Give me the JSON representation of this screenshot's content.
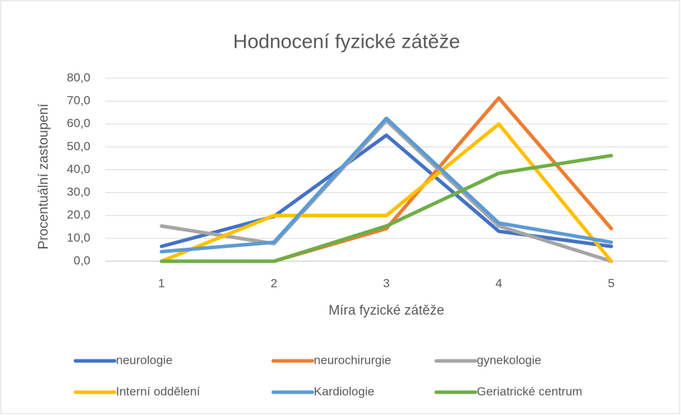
{
  "chart_data": {
    "type": "line",
    "title": "Hodnocení fyzické zátěže",
    "x_label": "Míra fyzické zátěže",
    "y_label": "Procentuální zastoupení",
    "categories": [
      "1",
      "2",
      "3",
      "4",
      "5"
    ],
    "series": [
      {
        "name": "neurologie",
        "color": "#4472c4",
        "values": [
          6.5,
          19.6,
          55.1,
          13.1,
          6.5
        ]
      },
      {
        "name": "neurochirurgie",
        "color": "#ed7d31",
        "values": [
          0,
          0,
          14.3,
          71.4,
          14.3
        ]
      },
      {
        "name": "gynekologie",
        "color": "#a5a5a5",
        "values": [
          15.4,
          7.7,
          61.5,
          15.4,
          0
        ]
      },
      {
        "name": "Interní oddělení",
        "color": "#ffc000",
        "values": [
          0,
          20,
          20,
          60,
          0
        ]
      },
      {
        "name": "Kardiologie",
        "color": "#5b9bd5",
        "values": [
          4.2,
          8.3,
          62.5,
          16.7,
          8.3
        ]
      },
      {
        "name": "Geriatrické centrum",
        "color": "#70ad47",
        "values": [
          0,
          0,
          15.4,
          38.5,
          46.2
        ]
      }
    ],
    "ylim": [
      0,
      80
    ],
    "yticks": [
      {
        "value": 0,
        "label": "0,0"
      },
      {
        "value": 10,
        "label": "10,0"
      },
      {
        "value": 20,
        "label": "20,0"
      },
      {
        "value": 30,
        "label": "30,0"
      },
      {
        "value": 40,
        "label": "40,0"
      },
      {
        "value": 50,
        "label": "50,0"
      },
      {
        "value": 60,
        "label": "60,0"
      },
      {
        "value": 70,
        "label": "70,0"
      },
      {
        "value": 80,
        "label": "80,0"
      }
    ],
    "grid": true,
    "legend": "bottom"
  }
}
